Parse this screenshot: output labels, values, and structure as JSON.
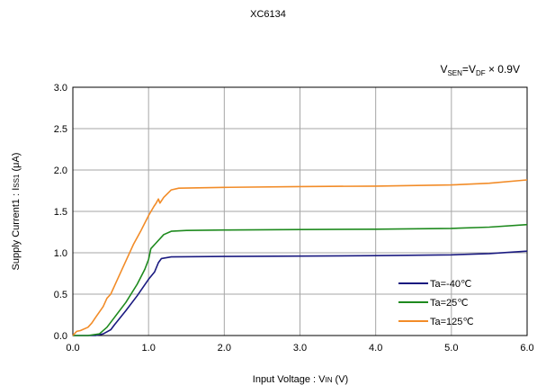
{
  "chart_data": {
    "type": "line",
    "title": "XC6134",
    "condition": {
      "lhs_main": "V",
      "lhs_sub": "SEN",
      "eq": "=",
      "rhs_main": "V",
      "rhs_sub": "DF",
      "tail": " × 0.9V"
    },
    "xlabel": "Input Voltage : V",
    "xlabel_sub": "IN",
    "xlabel_unit": " (V)",
    "ylabel": "Supply Current1 : I",
    "ylabel_sub": "SS1",
    "ylabel_unit": " (μA)",
    "xlim": [
      0,
      6
    ],
    "ylim": [
      0,
      3
    ],
    "x_ticks": [
      "0.0",
      "1.0",
      "2.0",
      "3.0",
      "4.0",
      "5.0",
      "6.0"
    ],
    "y_ticks": [
      "0.0",
      "0.5",
      "1.0",
      "1.5",
      "2.0",
      "2.5",
      "3.0"
    ],
    "grid": true,
    "legend_position": "bottom-right",
    "series": [
      {
        "name": "Ta=-40℃",
        "color": "#1a1a80",
        "points": [
          [
            0,
            0
          ],
          [
            0.3,
            0
          ],
          [
            0.4,
            0.02
          ],
          [
            0.5,
            0.07
          ],
          [
            0.55,
            0.13
          ],
          [
            0.7,
            0.3
          ],
          [
            0.85,
            0.48
          ],
          [
            1.0,
            0.68
          ],
          [
            1.08,
            0.77
          ],
          [
            1.13,
            0.88
          ],
          [
            1.17,
            0.93
          ],
          [
            1.3,
            0.95
          ],
          [
            2.0,
            0.955
          ],
          [
            3.0,
            0.96
          ],
          [
            4.0,
            0.965
          ],
          [
            5.0,
            0.975
          ],
          [
            5.5,
            0.99
          ],
          [
            6.0,
            1.02
          ]
        ]
      },
      {
        "name": "Ta=25℃",
        "color": "#1e8a1e",
        "points": [
          [
            0,
            0
          ],
          [
            0.2,
            0
          ],
          [
            0.35,
            0.02
          ],
          [
            0.45,
            0.1
          ],
          [
            0.55,
            0.22
          ],
          [
            0.7,
            0.4
          ],
          [
            0.85,
            0.62
          ],
          [
            0.95,
            0.8
          ],
          [
            1.0,
            0.92
          ],
          [
            1.03,
            1.05
          ],
          [
            1.1,
            1.12
          ],
          [
            1.2,
            1.22
          ],
          [
            1.3,
            1.26
          ],
          [
            1.5,
            1.27
          ],
          [
            2.0,
            1.275
          ],
          [
            3.0,
            1.28
          ],
          [
            4.0,
            1.285
          ],
          [
            5.0,
            1.295
          ],
          [
            5.5,
            1.31
          ],
          [
            6.0,
            1.34
          ]
        ]
      },
      {
        "name": "Ta=125℃",
        "color": "#f28c28",
        "points": [
          [
            0,
            0
          ],
          [
            0.05,
            0.05
          ],
          [
            0.1,
            0.06
          ],
          [
            0.2,
            0.1
          ],
          [
            0.25,
            0.15
          ],
          [
            0.3,
            0.22
          ],
          [
            0.4,
            0.35
          ],
          [
            0.45,
            0.45
          ],
          [
            0.5,
            0.5
          ],
          [
            0.6,
            0.7
          ],
          [
            0.7,
            0.9
          ],
          [
            0.8,
            1.1
          ],
          [
            0.9,
            1.27
          ],
          [
            1.0,
            1.45
          ],
          [
            1.07,
            1.56
          ],
          [
            1.1,
            1.6
          ],
          [
            1.13,
            1.65
          ],
          [
            1.15,
            1.6
          ],
          [
            1.2,
            1.67
          ],
          [
            1.3,
            1.76
          ],
          [
            1.4,
            1.78
          ],
          [
            2.0,
            1.79
          ],
          [
            3.0,
            1.8
          ],
          [
            4.0,
            1.805
          ],
          [
            5.0,
            1.82
          ],
          [
            5.5,
            1.84
          ],
          [
            6.0,
            1.88
          ]
        ]
      }
    ]
  }
}
